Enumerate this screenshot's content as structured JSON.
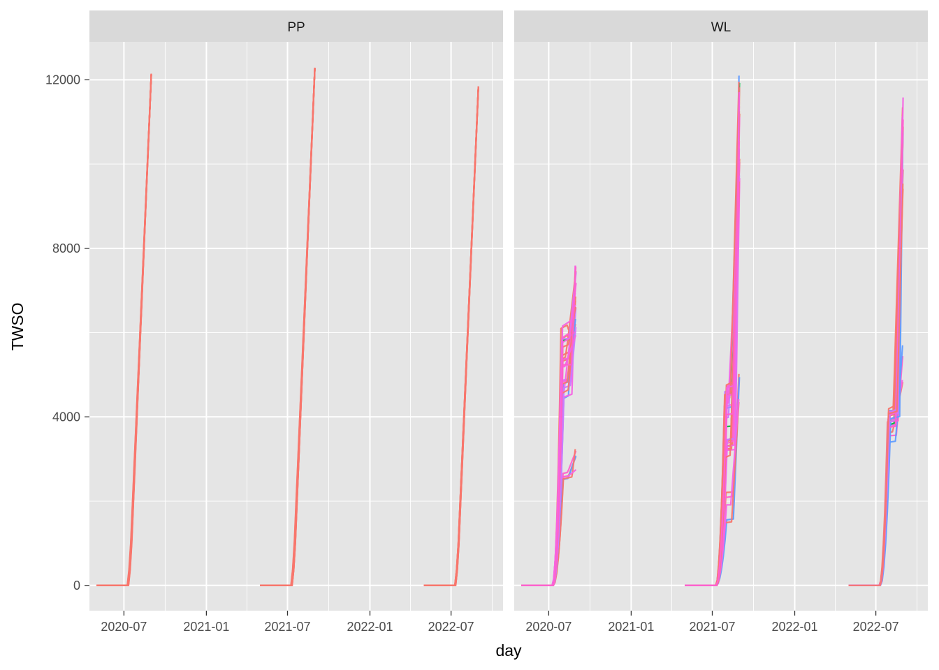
{
  "chart_data": {
    "type": "line",
    "xlabel": "day",
    "ylabel": "TWSO",
    "x_ticks": [
      "2020-07",
      "2021-01",
      "2021-07",
      "2022-01",
      "2022-07"
    ],
    "y_ticks": [
      0,
      4000,
      8000,
      12000
    ],
    "xlim": [
      "2020-04-15",
      "2022-10-25"
    ],
    "ylim": [
      -600,
      12900
    ],
    "grid": true,
    "legend": "none",
    "colors": {
      "panel_bg": "#e5e5e5",
      "strip_bg": "#d9d9d9",
      "gridline": "#ffffff",
      "series_palette": [
        "#f8766d",
        "#00ba38",
        "#619cff",
        "#c77cff",
        "#ff61cc",
        "#f564e3",
        "#00bfc4"
      ]
    },
    "panels": [
      {
        "label": "PP",
        "seasons": [
          {
            "start": "2020-05-01",
            "emerge": "2020-07-10",
            "end": "2020-08-31",
            "final": 12150,
            "spread": 60,
            "count": 12
          },
          {
            "start": "2021-05-01",
            "emerge": "2021-07-10",
            "end": "2021-08-31",
            "final": 12300,
            "spread": 60,
            "count": 12
          },
          {
            "start": "2022-05-01",
            "emerge": "2022-07-10",
            "end": "2022-08-31",
            "final": 11850,
            "spread": 70,
            "count": 12
          }
        ]
      },
      {
        "label": "WL",
        "seasons": [
          {
            "start": "2020-05-01",
            "emerge": "2020-07-10",
            "end": "2020-08-31",
            "final": 7600,
            "plateau_min": 2500,
            "plateau_max": 6300,
            "low_final": 3000,
            "count": 30
          },
          {
            "start": "2021-05-01",
            "emerge": "2021-07-10",
            "end": "2021-08-31",
            "final": 12200,
            "plateau_min": 900,
            "plateau_max": 5000,
            "low_final": 4600,
            "count": 30
          },
          {
            "start": "2022-05-01",
            "emerge": "2022-07-10",
            "end": "2022-08-31",
            "final": 11700,
            "plateau_min": 3300,
            "plateau_max": 4200,
            "low_final": 5300,
            "count": 25
          }
        ]
      }
    ]
  }
}
